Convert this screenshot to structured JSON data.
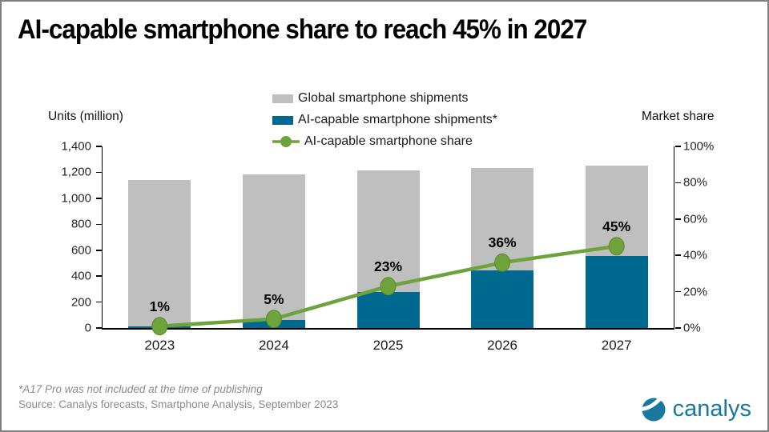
{
  "title": "AI-capable smartphone share to reach 45% in 2027",
  "legend": [
    {
      "label": "Global smartphone shipments",
      "type": "bar",
      "color": "#bfbfbf"
    },
    {
      "label": "AI-capable smartphone shipments*",
      "type": "bar",
      "color": "#00698f"
    },
    {
      "label": "AI-capable smartphone share",
      "type": "line",
      "color": "#6ea33c"
    }
  ],
  "chart_data": {
    "type": "bar+line combo",
    "categories": [
      "2023",
      "2024",
      "2025",
      "2026",
      "2027"
    ],
    "series": [
      {
        "name": "Global smartphone shipments",
        "type": "bar",
        "axis": "left",
        "color": "#bfbfbf",
        "values": [
          1140,
          1185,
          1215,
          1235,
          1250
        ]
      },
      {
        "name": "AI-capable smartphone shipments*",
        "type": "bar",
        "axis": "left",
        "color": "#00698f",
        "values": [
          15,
          65,
          275,
          445,
          555
        ]
      },
      {
        "name": "AI-capable smartphone share",
        "type": "line",
        "axis": "right",
        "color": "#6ea33c",
        "values": [
          1,
          5,
          23,
          36,
          45
        ],
        "labels": [
          "1%",
          "5%",
          "23%",
          "36%",
          "45%"
        ]
      }
    ],
    "left_axis": {
      "title": "Units (million)",
      "min": 0,
      "max": 1400,
      "ticks": [
        "0",
        "200",
        "400",
        "600",
        "800",
        "1,000",
        "1,200",
        "1,400"
      ]
    },
    "right_axis": {
      "title": "Market share",
      "min": 0,
      "max": 100,
      "ticks": [
        "0%",
        "20%",
        "40%",
        "60%",
        "80%",
        "100%"
      ]
    },
    "grid": false,
    "legend_position": "top-center"
  },
  "footnote": "*A17 Pro was not included at the time of publishing",
  "source": "Source: Canalys forecasts, Smartphone Analysis, September 2023",
  "logo": {
    "text": "canalys",
    "color": "#1878a0"
  }
}
